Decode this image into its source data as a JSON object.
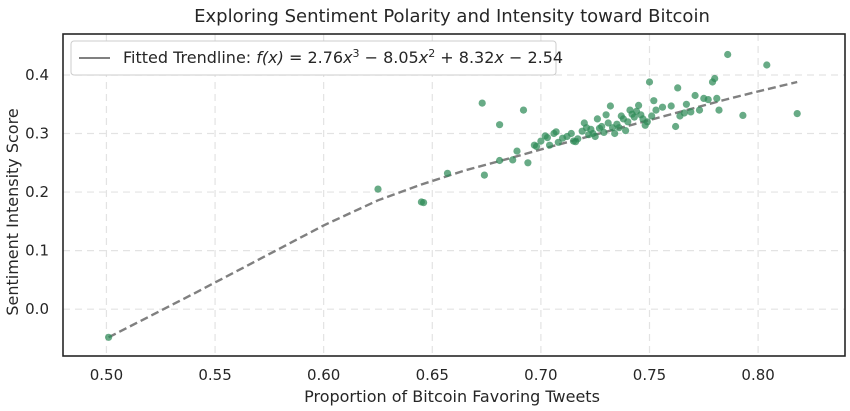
{
  "chart_data": {
    "type": "scatter",
    "title": "Exploring Sentiment Polarity and Intensity toward Bitcoin",
    "xlabel": "Proportion of Bitcoin Favoring Tweets",
    "ylabel": "Sentiment Intensity Score",
    "xlim": [
      0.48,
      0.84
    ],
    "ylim": [
      -0.08,
      0.47
    ],
    "xticks": [
      0.5,
      0.55,
      0.6,
      0.65,
      0.7,
      0.75,
      0.8
    ],
    "xtick_labels": [
      "0.50",
      "0.55",
      "0.60",
      "0.65",
      "0.70",
      "0.75",
      "0.80"
    ],
    "yticks": [
      0.0,
      0.1,
      0.2,
      0.3,
      0.4
    ],
    "ytick_labels": [
      "0.0",
      "0.1",
      "0.2",
      "0.3",
      "0.4"
    ],
    "grid": true,
    "legend_position": "top-left",
    "series": [
      {
        "kind": "scatter",
        "color": "#2e8b57",
        "points": [
          [
            0.501,
            -0.048
          ],
          [
            0.625,
            0.205
          ],
          [
            0.645,
            0.183
          ],
          [
            0.646,
            0.182
          ],
          [
            0.657,
            0.232
          ],
          [
            0.673,
            0.352
          ],
          [
            0.674,
            0.229
          ],
          [
            0.681,
            0.315
          ],
          [
            0.681,
            0.254
          ],
          [
            0.687,
            0.255
          ],
          [
            0.689,
            0.27
          ],
          [
            0.692,
            0.34
          ],
          [
            0.694,
            0.25
          ],
          [
            0.697,
            0.28
          ],
          [
            0.698,
            0.278
          ],
          [
            0.7,
            0.287
          ],
          [
            0.702,
            0.296
          ],
          [
            0.703,
            0.293
          ],
          [
            0.704,
            0.28
          ],
          [
            0.706,
            0.3
          ],
          [
            0.707,
            0.303
          ],
          [
            0.708,
            0.285
          ],
          [
            0.71,
            0.292
          ],
          [
            0.712,
            0.295
          ],
          [
            0.714,
            0.3
          ],
          [
            0.715,
            0.287
          ],
          [
            0.716,
            0.286
          ],
          [
            0.717,
            0.291
          ],
          [
            0.719,
            0.304
          ],
          [
            0.72,
            0.318
          ],
          [
            0.721,
            0.31
          ],
          [
            0.722,
            0.298
          ],
          [
            0.723,
            0.307
          ],
          [
            0.724,
            0.3
          ],
          [
            0.725,
            0.295
          ],
          [
            0.726,
            0.325
          ],
          [
            0.727,
            0.309
          ],
          [
            0.728,
            0.312
          ],
          [
            0.729,
            0.302
          ],
          [
            0.73,
            0.332
          ],
          [
            0.731,
            0.318
          ],
          [
            0.732,
            0.347
          ],
          [
            0.733,
            0.31
          ],
          [
            0.734,
            0.3
          ],
          [
            0.735,
            0.316
          ],
          [
            0.736,
            0.31
          ],
          [
            0.737,
            0.33
          ],
          [
            0.738,
            0.325
          ],
          [
            0.739,
            0.305
          ],
          [
            0.74,
            0.32
          ],
          [
            0.741,
            0.34
          ],
          [
            0.742,
            0.333
          ],
          [
            0.743,
            0.328
          ],
          [
            0.744,
            0.338
          ],
          [
            0.745,
            0.348
          ],
          [
            0.746,
            0.332
          ],
          [
            0.747,
            0.325
          ],
          [
            0.748,
            0.314
          ],
          [
            0.749,
            0.32
          ],
          [
            0.75,
            0.388
          ],
          [
            0.751,
            0.33
          ],
          [
            0.752,
            0.356
          ],
          [
            0.753,
            0.34
          ],
          [
            0.756,
            0.345
          ],
          [
            0.76,
            0.347
          ],
          [
            0.762,
            0.312
          ],
          [
            0.763,
            0.378
          ],
          [
            0.764,
            0.33
          ],
          [
            0.766,
            0.335
          ],
          [
            0.767,
            0.35
          ],
          [
            0.769,
            0.337
          ],
          [
            0.771,
            0.365
          ],
          [
            0.773,
            0.34
          ],
          [
            0.775,
            0.36
          ],
          [
            0.777,
            0.358
          ],
          [
            0.779,
            0.388
          ],
          [
            0.78,
            0.394
          ],
          [
            0.781,
            0.36
          ],
          [
            0.782,
            0.34
          ],
          [
            0.786,
            0.435
          ],
          [
            0.793,
            0.331
          ],
          [
            0.804,
            0.417
          ],
          [
            0.818,
            0.334
          ]
        ]
      },
      {
        "kind": "line",
        "name": "Fitted Trendline: f(x) = 2.76x³ − 8.05x² + 8.32x − 2.54",
        "color": "#808080",
        "style": "dashed",
        "points": [
          [
            0.501,
            -0.048
          ],
          [
            0.52,
            -0.012
          ],
          [
            0.54,
            0.026
          ],
          [
            0.56,
            0.065
          ],
          [
            0.58,
            0.104
          ],
          [
            0.6,
            0.143
          ],
          [
            0.625,
            0.186
          ],
          [
            0.645,
            0.213
          ],
          [
            0.665,
            0.237
          ],
          [
            0.685,
            0.257
          ],
          [
            0.705,
            0.278
          ],
          [
            0.725,
            0.298
          ],
          [
            0.745,
            0.318
          ],
          [
            0.765,
            0.338
          ],
          [
            0.785,
            0.358
          ],
          [
            0.8,
            0.372
          ],
          [
            0.818,
            0.388
          ]
        ]
      }
    ],
    "legend": {
      "label_text": "Fitted Trendline: ",
      "formula_lhs": "f(x)",
      "formula_rhs_a": "2.76",
      "formula_rhs_b": "8.05",
      "formula_rhs_c": "8.32",
      "formula_rhs_d": "2.54"
    }
  }
}
